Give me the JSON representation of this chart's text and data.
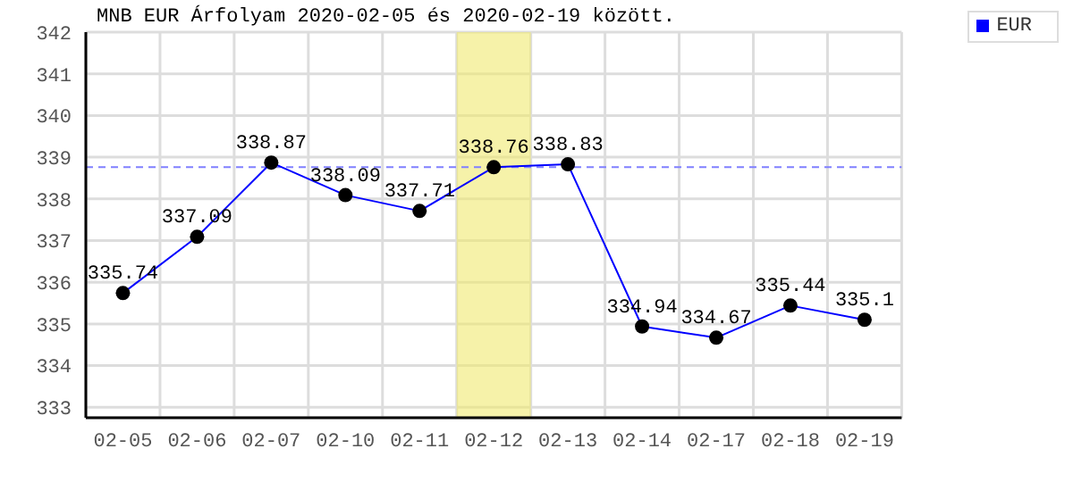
{
  "chart_data": {
    "type": "line",
    "title": "MNB EUR Árfolyam 2020-02-05 és 2020-02-19 között.",
    "categories": [
      "02-05",
      "02-06",
      "02-07",
      "02-10",
      "02-11",
      "02-12",
      "02-13",
      "02-14",
      "02-17",
      "02-18",
      "02-19"
    ],
    "series": [
      {
        "name": "EUR",
        "color": "#0000ff",
        "values": [
          335.74,
          337.09,
          338.87,
          338.09,
          337.71,
          338.76,
          338.83,
          334.94,
          334.67,
          335.44,
          335.1
        ]
      }
    ],
    "ylim": [
      332.75,
      342
    ],
    "yticks": [
      333,
      334,
      335,
      336,
      337,
      338,
      339,
      340,
      341,
      342
    ],
    "ref_lines": [
      {
        "axis": "y",
        "value": 338.76,
        "color": "#8080ff",
        "line_style": "dashed"
      }
    ],
    "bands": [
      {
        "axis": "x",
        "from": "02-12",
        "to": "02-12",
        "color": "#f0ea70"
      }
    ],
    "grid": true,
    "legend": "top right",
    "marker": "circle",
    "data_labels": true
  }
}
